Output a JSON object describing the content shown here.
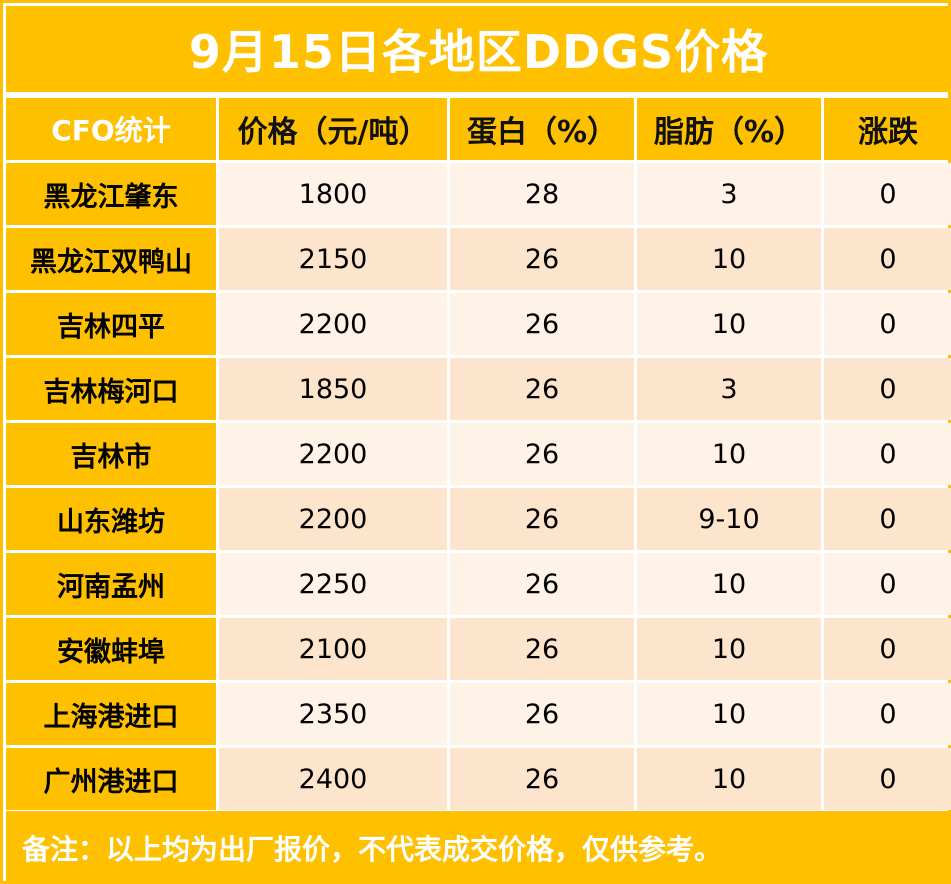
{
  "title": "9月15日各地区DDGS价格",
  "header": {
    "stat_label": "CFO统计",
    "price": "价格（元/吨）",
    "protein": "蛋白（%）",
    "fat": "脂肪（%）",
    "change": "涨跌"
  },
  "rows": [
    {
      "region": "黑龙江肇东",
      "price": "1800",
      "protein": "28",
      "fat": "3",
      "change": "0"
    },
    {
      "region": "黑龙江双鸭山",
      "price": "2150",
      "protein": "26",
      "fat": "10",
      "change": "0"
    },
    {
      "region": "吉林四平",
      "price": "2200",
      "protein": "26",
      "fat": "10",
      "change": "0"
    },
    {
      "region": "吉林梅河口",
      "price": "1850",
      "protein": "26",
      "fat": "3",
      "change": "0"
    },
    {
      "region": "吉林市",
      "price": "2200",
      "protein": "26",
      "fat": "10",
      "change": "0"
    },
    {
      "region": "山东潍坊",
      "price": "2200",
      "protein": "26",
      "fat": "9-10",
      "change": "0"
    },
    {
      "region": "河南孟州",
      "price": "2250",
      "protein": "26",
      "fat": "10",
      "change": "0"
    },
    {
      "region": "安徽蚌埠",
      "price": "2100",
      "protein": "26",
      "fat": "10",
      "change": "0"
    },
    {
      "region": "上海港进口",
      "price": "2350",
      "protein": "26",
      "fat": "10",
      "change": "0"
    },
    {
      "region": "广州港进口",
      "price": "2400",
      "protein": "26",
      "fat": "10",
      "change": "0"
    }
  ],
  "footer": "备注：以上均为出厂报价，不代表成交价格，仅供参考。",
  "colors": {
    "accent": "#FFC000",
    "row_light": "#FFF2E6",
    "row_dark": "#FDE4CC"
  }
}
